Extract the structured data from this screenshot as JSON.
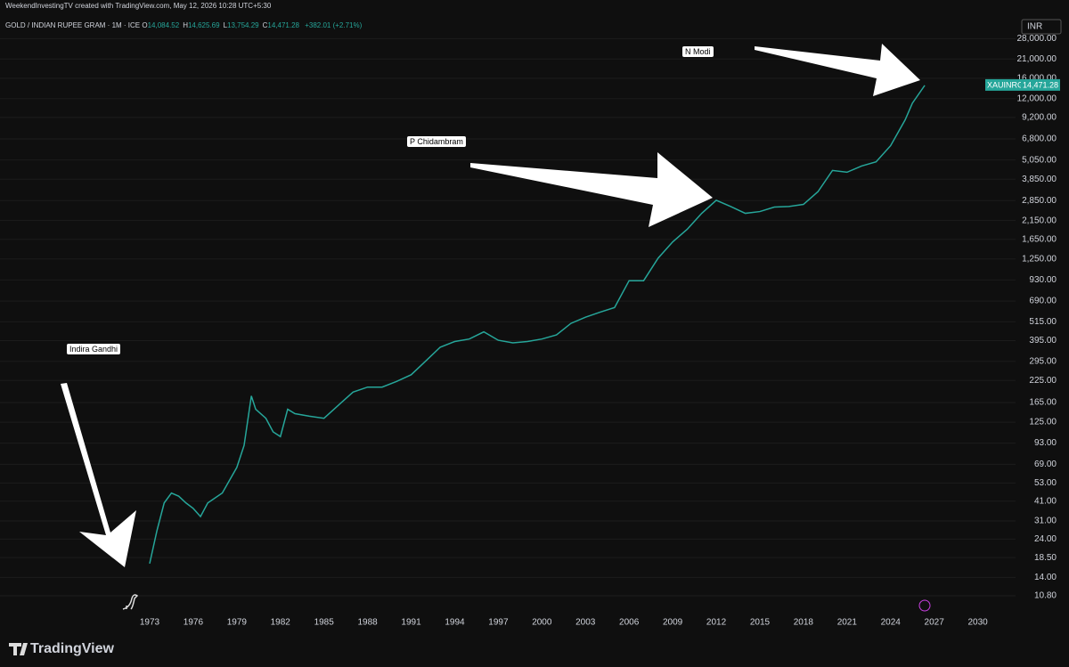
{
  "header": {
    "credit": "WeekendInvestingTV created with TradingView.com, May 12, 2026 10:28 UTC+5:30",
    "symbol": "GOLD / INDIAN RUPEE GRAM · 1M · ICE",
    "ohlc": [
      {
        "key": "O",
        "value": "14,084.52"
      },
      {
        "key": "H",
        "value": "14,625.69"
      },
      {
        "key": "L",
        "value": "13,754.29"
      },
      {
        "key": "C",
        "value": "14,471.28"
      }
    ],
    "change": "+382.01 (+2.71%)"
  },
  "currency": "INR",
  "footer": {
    "brand": "TradingView"
  },
  "chart_data": {
    "type": "line",
    "log_scale": true,
    "grid": true,
    "x": [
      1973,
      1973.5,
      1974,
      1974.5,
      1975,
      1975.5,
      1976,
      1976.5,
      1977,
      1978,
      1979,
      1979.5,
      1980,
      1980.3,
      1981,
      1981.5,
      1982,
      1982.5,
      1983,
      1984,
      1985,
      1986,
      1987,
      1988,
      1989,
      1990,
      1991,
      1992,
      1993,
      1994,
      1995,
      1996,
      1997,
      1998,
      1999,
      2000,
      2001,
      2002,
      2003,
      2004,
      2005,
      2006,
      2007,
      2008,
      2009,
      2010,
      2011,
      2012,
      2013,
      2014,
      2015,
      2016,
      2017,
      2018,
      2019,
      2020,
      2021,
      2022,
      2023,
      2024,
      2025,
      2025.5,
      2026.35
    ],
    "series": [
      {
        "name": "XAUINRG",
        "color": "#26a69a",
        "price_label": "14,471.28",
        "values": [
          17,
          27,
          40,
          46,
          44,
          40,
          37,
          33,
          40,
          46,
          66,
          90,
          181,
          150,
          132,
          109,
          102,
          150,
          141,
          136,
          132,
          159,
          191,
          205,
          205,
          222,
          244,
          296,
          360,
          390,
          404,
          447,
          397,
          383,
          390,
          404,
          428,
          504,
          550,
          590,
          630,
          920,
          920,
          1265,
          1590,
          1900,
          2380,
          2860,
          2620,
          2380,
          2440,
          2600,
          2620,
          2700,
          3230,
          4360,
          4250,
          4640,
          4920,
          6180,
          8890,
          11260,
          14471.28
        ]
      }
    ],
    "xlim": [
      1962.7,
      2032.6
    ],
    "xticks": [
      1973,
      1976,
      1979,
      1982,
      1985,
      1988,
      1991,
      1994,
      1997,
      2000,
      2003,
      2006,
      2009,
      2012,
      2015,
      2018,
      2021,
      2024,
      2027,
      2030
    ],
    "ylim": [
      8.83,
      38500
    ],
    "yticks": [
      {
        "value": 10.8,
        "label": "10.80"
      },
      {
        "value": 14,
        "label": "14.00"
      },
      {
        "value": 18.5,
        "label": "18.50"
      },
      {
        "value": 24,
        "label": "24.00"
      },
      {
        "value": 31,
        "label": "31.00"
      },
      {
        "value": 41,
        "label": "41.00"
      },
      {
        "value": 53,
        "label": "53.00"
      },
      {
        "value": 69,
        "label": "69.00"
      },
      {
        "value": 93,
        "label": "93.00"
      },
      {
        "value": 125,
        "label": "125.00"
      },
      {
        "value": 165,
        "label": "165.00"
      },
      {
        "value": 225,
        "label": "225.00"
      },
      {
        "value": 295,
        "label": "295.00"
      },
      {
        "value": 395,
        "label": "395.00"
      },
      {
        "value": 515,
        "label": "515.00"
      },
      {
        "value": 690,
        "label": "690.00"
      },
      {
        "value": 930,
        "label": "930.00"
      },
      {
        "value": 1250,
        "label": "1,250.00"
      },
      {
        "value": 1650,
        "label": "1,650.00"
      },
      {
        "value": 2150,
        "label": "2,150.00"
      },
      {
        "value": 2850,
        "label": "2,850.00"
      },
      {
        "value": 3850,
        "label": "3,850.00"
      },
      {
        "value": 5050,
        "label": "5,050.00"
      },
      {
        "value": 6800,
        "label": "6,800.00"
      },
      {
        "value": 9200,
        "label": "9,200.00"
      },
      {
        "value": 12000,
        "label": "12,000.00"
      },
      {
        "value": 16000,
        "label": "16,000.00"
      },
      {
        "value": 21000,
        "label": "21,000.00"
      },
      {
        "value": 28000,
        "label": "28,000.00"
      }
    ],
    "annotations": [
      {
        "text": "Indira Gandhi"
      },
      {
        "text": "P Chidambram"
      },
      {
        "text": "N Modi"
      }
    ]
  }
}
